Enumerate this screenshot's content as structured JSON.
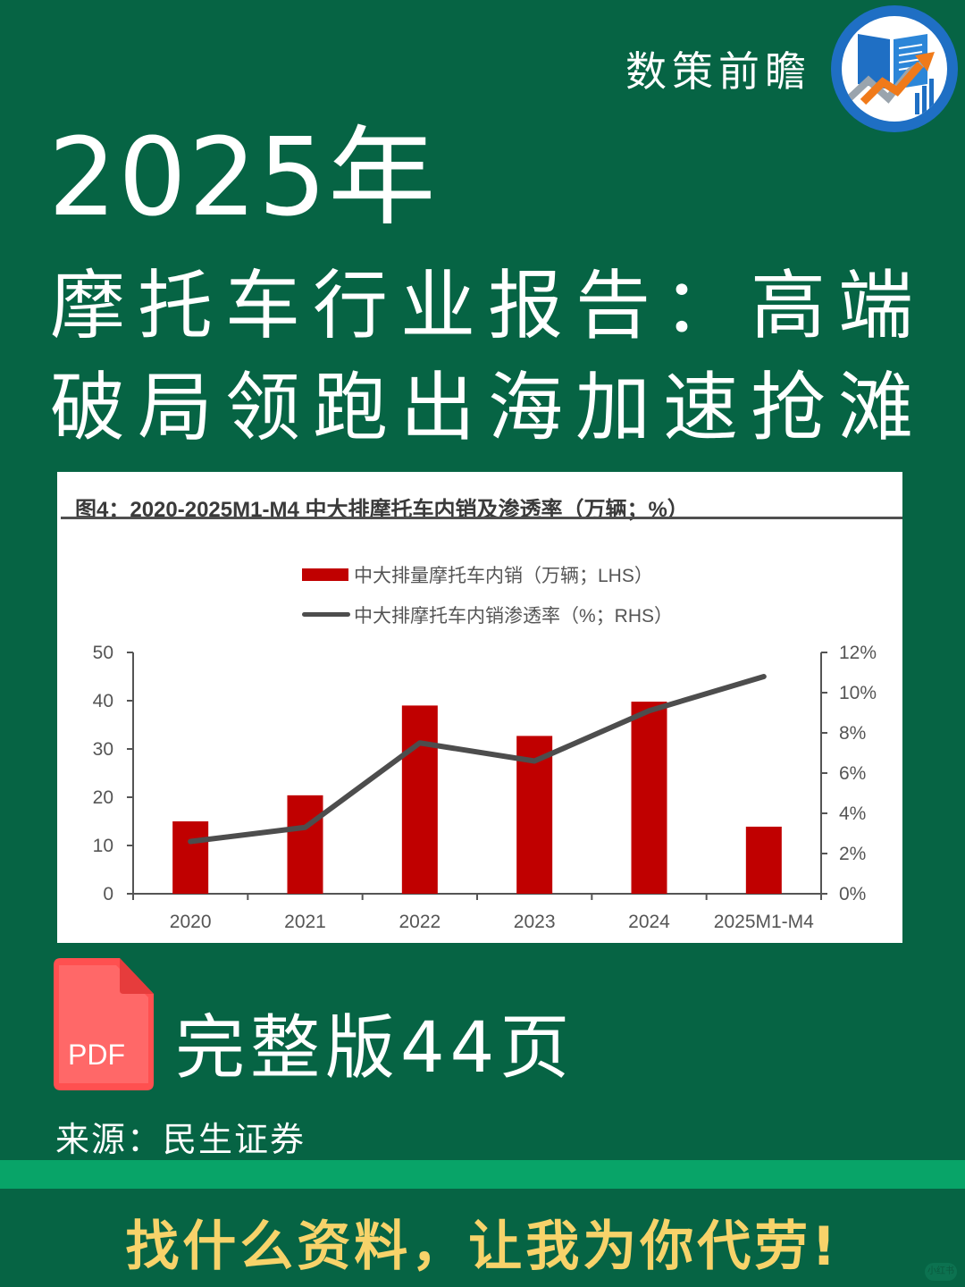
{
  "header": {
    "brand_name": "数策前瞻",
    "logo_icon": "book-growth-chart-logo"
  },
  "title": {
    "year": "2025年",
    "line1": "摩托车行业报告：高端",
    "line2": "破局领跑出海加速抢滩"
  },
  "chart_data": {
    "type": "bar+line",
    "title": "图4：2020-2025M1-M4 中大排摩托车内销及渗透率（万辆；%）",
    "categories": [
      "2020",
      "2021",
      "2022",
      "2023",
      "2024",
      "2025M1-M4"
    ],
    "series": [
      {
        "name": "中大排量摩托车内销（万辆；LHS）",
        "type": "bar",
        "axis": "left",
        "color": "#c00000",
        "values": [
          15.0,
          20.4,
          39.0,
          32.7,
          39.8,
          13.9
        ]
      },
      {
        "name": "中大排摩托车内销渗透率（%；RHS）",
        "type": "line",
        "axis": "right",
        "color": "#4d4d4d",
        "values": [
          2.6,
          3.3,
          7.5,
          6.6,
          9.1,
          10.8
        ]
      }
    ],
    "left_axis": {
      "ylim": [
        0,
        50
      ],
      "ticks": [
        "0",
        "10",
        "20",
        "30",
        "40",
        "50"
      ]
    },
    "right_axis": {
      "ylim": [
        0,
        12
      ],
      "ticks": [
        "0%",
        "2%",
        "4%",
        "6%",
        "8%",
        "10%",
        "12%"
      ]
    },
    "grid": false,
    "legend_position": "top-center",
    "xlabel": "",
    "ylabel": ""
  },
  "legend": {
    "bar_label": "中大排量摩托车内销（万辆；LHS）",
    "line_label": "中大排摩托车内销渗透率（%；RHS）"
  },
  "footer": {
    "pdf_icon_label": "PDF",
    "full_version": "完整版44页",
    "source": "来源：民生证券",
    "cta": "找什么资料，让我为你代劳!",
    "watermark": "小红书"
  },
  "colors": {
    "background": "#066444",
    "stripe": "#08a468",
    "cta_text": "#f7d36a",
    "bar": "#c00000",
    "line": "#4d4d4d",
    "pdf_icon": "#ff5b5b"
  }
}
